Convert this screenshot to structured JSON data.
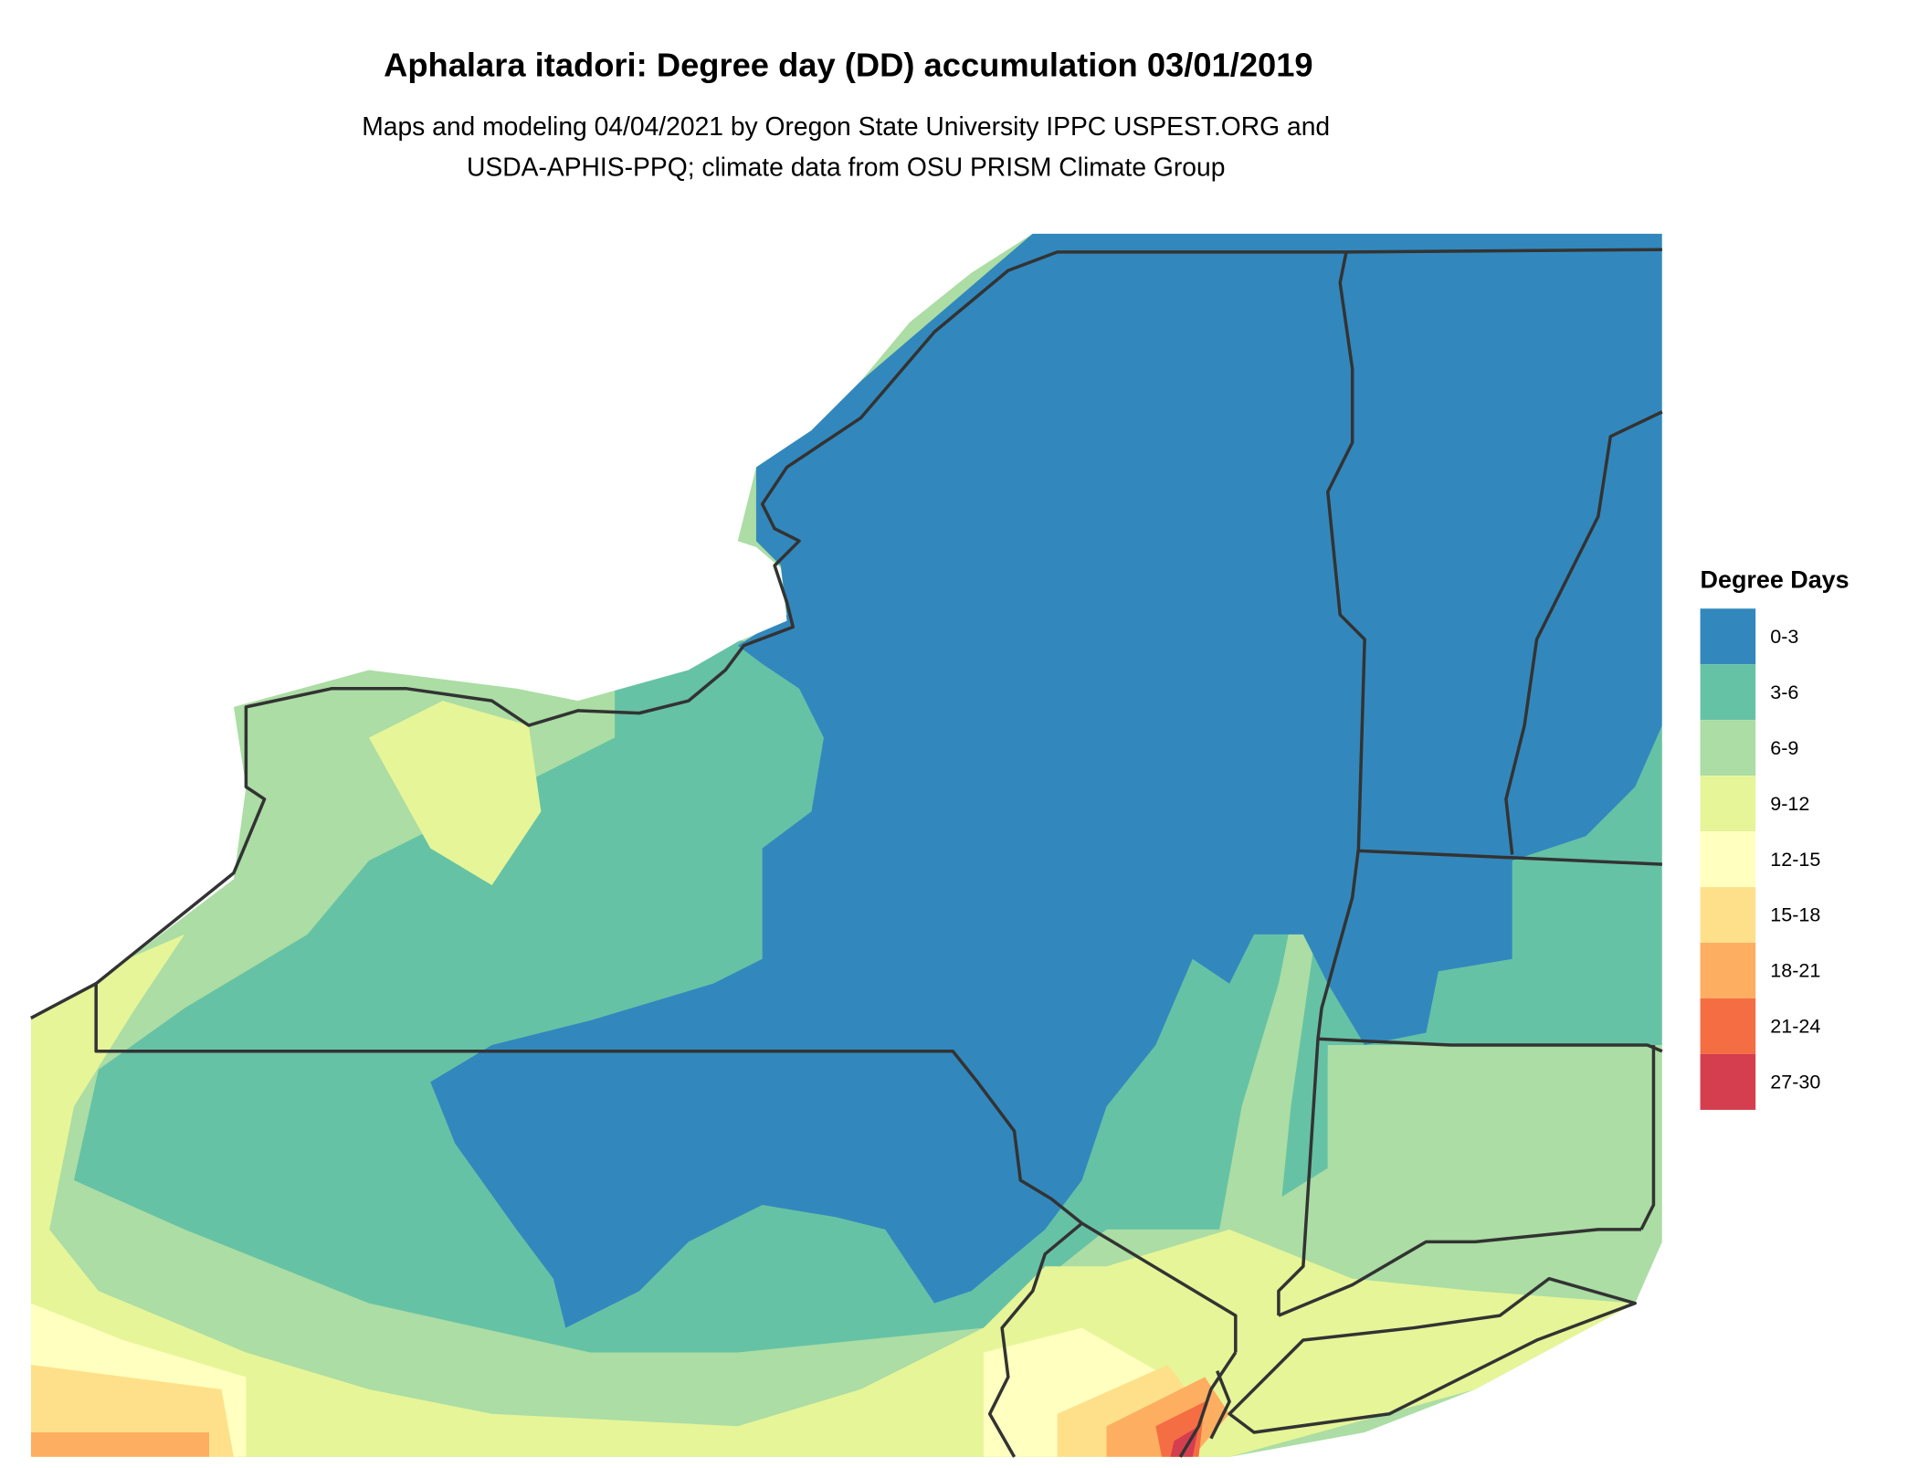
{
  "title": "Aphalara itadori: Degree day (DD) accumulation 03/01/2019",
  "subtitle_line1": "Maps and modeling 04/04/2021 by Oregon State University IPPC USPEST.ORG and",
  "subtitle_line2": "USDA-APHIS-PPQ; climate data from OSU PRISM Climate Group",
  "legend": {
    "title": "Degree Days",
    "items": [
      {
        "label": "0-3",
        "color": "#3288bd"
      },
      {
        "label": "3-6",
        "color": "#66c2a5"
      },
      {
        "label": "6-9",
        "color": "#abdda4"
      },
      {
        "label": "9-12",
        "color": "#e6f598"
      },
      {
        "label": "12-15",
        "color": "#ffffbf"
      },
      {
        "label": "15-18",
        "color": "#fee08b"
      },
      {
        "label": "18-21",
        "color": "#fdae61"
      },
      {
        "label": "21-24",
        "color": "#f46d43"
      },
      {
        "label": "27-30",
        "color": "#d53e4f"
      }
    ]
  },
  "map": {
    "border_color": "#333333"
  }
}
